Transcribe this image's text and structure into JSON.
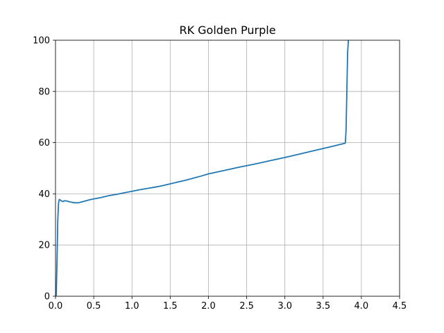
{
  "chart_data": {
    "type": "line",
    "title": "RK Golden Purple",
    "xlabel": "",
    "ylabel": "",
    "xlim": [
      0.0,
      4.5
    ],
    "ylim": [
      0,
      100
    ],
    "xticks": [
      "0.0",
      "0.5",
      "1.0",
      "1.5",
      "2.0",
      "2.5",
      "3.0",
      "3.5",
      "4.0",
      "4.5"
    ],
    "xtick_values": [
      0.0,
      0.5,
      1.0,
      1.5,
      2.0,
      2.5,
      3.0,
      3.5,
      4.0,
      4.5
    ],
    "yticks": [
      "0",
      "20",
      "40",
      "60",
      "80",
      "100"
    ],
    "ytick_values": [
      0,
      20,
      40,
      60,
      80,
      100
    ],
    "grid": true,
    "line_color": "#1f77b4",
    "series": [
      {
        "x": [
          0.0,
          0.01,
          0.02,
          0.03,
          0.04,
          0.05,
          0.06,
          0.08,
          0.1,
          0.12,
          0.15,
          0.18,
          0.2,
          0.25,
          0.3,
          0.35,
          0.4,
          0.45,
          0.5,
          0.6,
          0.7,
          0.8,
          0.9,
          1.0,
          1.1,
          1.2,
          1.3,
          1.4,
          1.5,
          1.6,
          1.7,
          1.8,
          1.9,
          2.0,
          2.2,
          2.4,
          2.6,
          2.8,
          3.0,
          3.2,
          3.4,
          3.6,
          3.79,
          3.8,
          3.81,
          3.82,
          3.83
        ],
        "y": [
          0,
          0.5,
          14,
          30,
          36.5,
          37.8,
          37.6,
          37.2,
          37.0,
          37.3,
          37.2,
          36.9,
          36.8,
          36.5,
          36.5,
          36.9,
          37.3,
          37.7,
          38.0,
          38.6,
          39.3,
          39.8,
          40.4,
          41.0,
          41.6,
          42.1,
          42.6,
          43.2,
          43.9,
          44.6,
          45.3,
          46.1,
          46.9,
          47.8,
          49.1,
          50.4,
          51.6,
          52.9,
          54.2,
          55.6,
          57.0,
          58.4,
          59.8,
          65,
          80,
          95,
          100
        ]
      }
    ]
  }
}
